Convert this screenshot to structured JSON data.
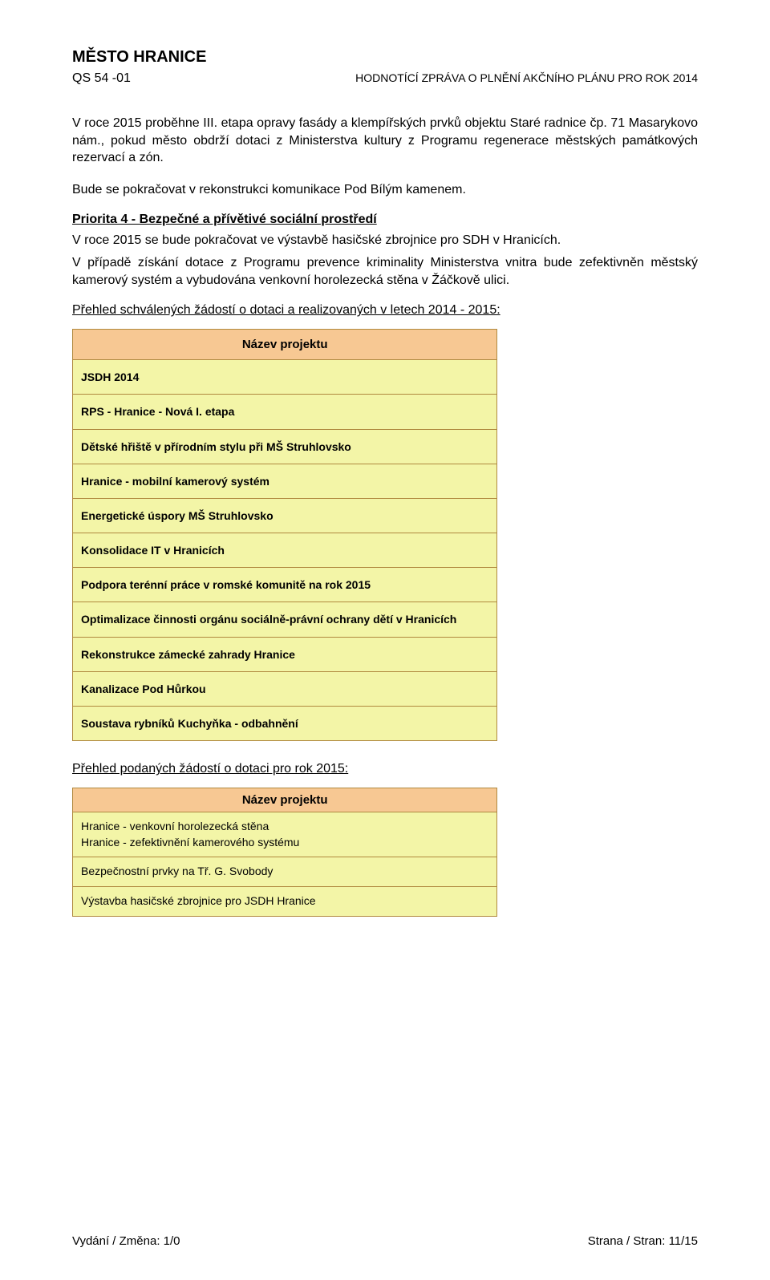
{
  "header": {
    "title": "MĚSTO HRANICE",
    "code": "QS 54 -01",
    "subtitle": "HODNOTÍCÍ ZPRÁVA O PLNĚNÍ AKČNÍHO PLÁNU PRO ROK 2014"
  },
  "body": {
    "para1": "V roce 2015 proběhne III. etapa opravy fasády a klempířských prvků objektu Staré radnice čp. 71 Masarykovo nám., pokud město obdrží dotaci z Ministerstva kultury z Programu regenerace městských památkových rezervací a zón.",
    "para2": "Bude se pokračovat v rekonstrukci komunikace Pod Bílým kamenem.",
    "priorita_head": "Priorita 4 - Bezpečné a přívětivé sociální prostředí",
    "para3": "V roce 2015 se bude pokračovat ve výstavbě hasičské zbrojnice pro SDH v Hranicích.",
    "para4": "V případě získání dotace z Programu prevence kriminality Ministerstva vnitra bude zefektivněn městský kamerový systém a vybudována venkovní horolezecká stěna v Žáčkově ulici.",
    "subhead1": "Přehled schválených žádostí o dotaci a realizovaných v letech 2014 - 2015:",
    "subhead2": "Přehled podaných žádostí o dotaci pro rok 2015:"
  },
  "table1": {
    "type": "table",
    "header_label": "Název projektu",
    "header_bg": "#f7c893",
    "row_bg": "#f3f5a7",
    "border_color": "#b0893f",
    "rows": [
      "JSDH 2014",
      "RPS - Hranice - Nová I. etapa",
      "Dětské hřiště v přírodním stylu při MŠ Struhlovsko",
      "Hranice - mobilní kamerový systém",
      "Energetické úspory MŠ Struhlovsko",
      "Konsolidace IT v Hranicích",
      "Podpora terénní práce v romské komunitě na rok 2015",
      "Optimalizace činnosti orgánu sociálně-právní ochrany dětí v Hranicích",
      "Rekonstrukce zámecké zahrady Hranice",
      "Kanalizace Pod Hůrkou",
      "Soustava rybníků Kuchyňka - odbahnění"
    ]
  },
  "table2": {
    "type": "table",
    "header_label": "Název projektu",
    "header_bg": "#f7c893",
    "row_bg": "#f3f5a7",
    "border_color": "#b0893f",
    "rows": [
      "Hranice - venkovní horolezecká stěna\nHranice - zefektivnění kamerového systému",
      "Bezpečnostní prvky na Tř. G. Svobody",
      "Výstavba hasičské zbrojnice pro JSDH Hranice"
    ]
  },
  "footer": {
    "left": "Vydání / Změna: 1/0",
    "right": "Strana / Stran: 11/15"
  }
}
